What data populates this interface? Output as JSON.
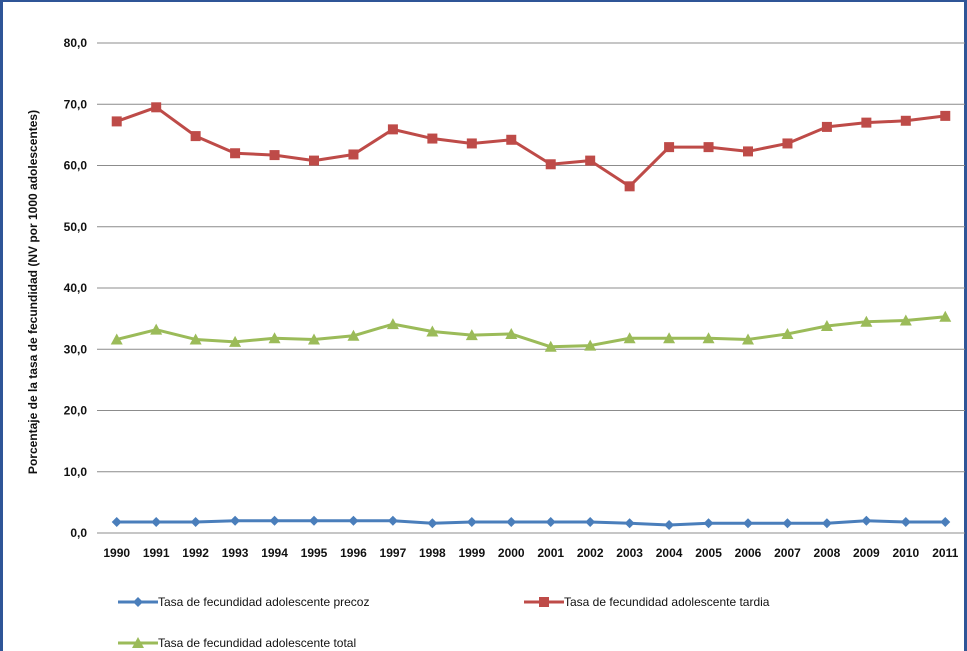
{
  "chart_data": {
    "type": "line",
    "title": "",
    "xlabel": "",
    "ylabel": "Porcentaje de la tasa de fecundidad  (NV por 1000 adolescentes)",
    "ylim": [
      0,
      80
    ],
    "yticks": [
      "0,0",
      "10,0",
      "20,0",
      "30,0",
      "40,0",
      "50,0",
      "60,0",
      "70,0",
      "80,0"
    ],
    "x": [
      "1990",
      "1991",
      "1992",
      "1993",
      "1994",
      "1995",
      "1996",
      "1997",
      "1998",
      "1999",
      "2000",
      "2001",
      "2002",
      "2003",
      "2004",
      "2005",
      "2006",
      "2007",
      "2008",
      "2009",
      "2010",
      "2011"
    ],
    "grid": true,
    "legend_position": "bottom",
    "series": [
      {
        "name": "Tasa de fecundidad adolescente precoz",
        "color": "#4a7ebb",
        "marker": "diamond",
        "values": [
          1.8,
          1.8,
          1.8,
          2.0,
          2.0,
          2.0,
          2.0,
          2.0,
          1.6,
          1.8,
          1.8,
          1.8,
          1.8,
          1.6,
          1.3,
          1.6,
          1.6,
          1.6,
          1.6,
          2.0,
          1.8,
          1.8
        ]
      },
      {
        "name": "Tasa de fecundidad adolescente tardia",
        "color": "#be4b48",
        "marker": "square",
        "values": [
          67.2,
          69.5,
          64.8,
          62.0,
          61.7,
          60.8,
          61.8,
          65.9,
          64.4,
          63.6,
          64.2,
          60.2,
          60.8,
          56.6,
          63.0,
          63.0,
          62.3,
          63.6,
          66.3,
          67.0,
          67.3,
          68.1
        ]
      },
      {
        "name": "Tasa de fecundidad adolescente total",
        "color": "#9bbb59",
        "marker": "triangle",
        "values": [
          31.6,
          33.2,
          31.6,
          31.2,
          31.8,
          31.6,
          32.2,
          34.1,
          32.9,
          32.3,
          32.5,
          30.4,
          30.6,
          31.8,
          31.8,
          31.8,
          31.6,
          32.5,
          33.8,
          34.5,
          34.7,
          35.3
        ]
      }
    ]
  }
}
